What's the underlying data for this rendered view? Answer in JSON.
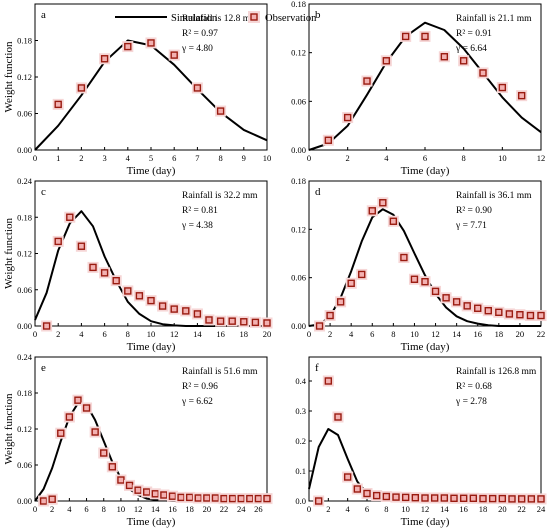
{
  "legend": {
    "simulation_label": "Simulation",
    "observation_label": "Observation"
  },
  "colors": {
    "simulation": "#000000",
    "marker_edge": "#9a1b10",
    "marker_fill": "#f3b1b1",
    "marker_halo": "#f6d6d6"
  },
  "chart_data": [
    {
      "type": "line",
      "panel_label": "a",
      "info_lines": [
        "Rainfall is 12.8 mm",
        "R² = 0.97",
        "γ = 4.80"
      ],
      "xlabel": "Time (day)",
      "ylabel": "Weight function",
      "xlim": [
        0,
        10
      ],
      "ylim": [
        0,
        0.24
      ],
      "xticks": [
        0,
        1,
        2,
        3,
        4,
        5,
        6,
        7,
        8,
        9,
        10
      ],
      "yticks": [
        0.0,
        0.06,
        0.12,
        0.18
      ],
      "ytick_labels": [
        "0.00",
        "0.06",
        "0.12",
        "0.18"
      ],
      "series": [
        {
          "name": "Simulation",
          "kind": "line",
          "x": [
            0,
            1,
            2,
            3,
            4,
            5,
            6,
            7,
            8,
            9,
            10
          ],
          "y": [
            0.0,
            0.04,
            0.09,
            0.145,
            0.18,
            0.172,
            0.14,
            0.1,
            0.062,
            0.033,
            0.016
          ]
        },
        {
          "name": "Observation",
          "kind": "marker",
          "x": [
            1,
            2,
            3,
            4,
            5,
            6,
            7,
            8
          ],
          "y": [
            0.075,
            0.102,
            0.15,
            0.17,
            0.176,
            0.156,
            0.102,
            0.064
          ]
        }
      ]
    },
    {
      "type": "line",
      "panel_label": "b",
      "info_lines": [
        "Rainfall is 21.1 mm",
        "R² = 0.91",
        "γ = 6.64"
      ],
      "xlabel": "Time (day)",
      "ylabel": "",
      "xlim": [
        0,
        12
      ],
      "ylim": [
        0,
        0.18
      ],
      "xticks": [
        0,
        2,
        4,
        6,
        8,
        10,
        12
      ],
      "yticks": [
        0.0,
        0.06,
        0.12,
        0.18
      ],
      "ytick_labels": [
        "0.00",
        "0.06",
        "0.12",
        "0.18"
      ],
      "series": [
        {
          "name": "Simulation",
          "kind": "line",
          "x": [
            0,
            1,
            2,
            3,
            4,
            5,
            6,
            7,
            8,
            9,
            10,
            11,
            12
          ],
          "y": [
            0.0,
            0.008,
            0.03,
            0.068,
            0.108,
            0.14,
            0.157,
            0.148,
            0.125,
            0.095,
            0.065,
            0.04,
            0.022
          ]
        },
        {
          "name": "Observation",
          "kind": "marker",
          "x": [
            1,
            2,
            3,
            4,
            5,
            6,
            7,
            8,
            9,
            10,
            11
          ],
          "y": [
            0.012,
            0.04,
            0.085,
            0.11,
            0.14,
            0.14,
            0.115,
            0.11,
            0.095,
            0.077,
            0.067
          ]
        }
      ]
    },
    {
      "type": "line",
      "panel_label": "c",
      "info_lines": [
        "Rainfall is 32.2 mm",
        "R² = 0.81",
        "γ = 4.38"
      ],
      "xlabel": "Time (day)",
      "ylabel": "Weight function",
      "xlim": [
        0,
        20
      ],
      "ylim": [
        0,
        0.24
      ],
      "xticks": [
        0,
        2,
        4,
        6,
        8,
        10,
        12,
        14,
        16,
        18,
        20
      ],
      "yticks": [
        0.0,
        0.06,
        0.12,
        0.18,
        0.24
      ],
      "ytick_labels": [
        "0.00",
        "0.06",
        "0.12",
        "0.18",
        "0.24"
      ],
      "series": [
        {
          "name": "Simulation",
          "kind": "line",
          "x": [
            0,
            1,
            2,
            3,
            4,
            5,
            6,
            7,
            8,
            9,
            10,
            11,
            12,
            13,
            14,
            15,
            16,
            17,
            18,
            19,
            20
          ],
          "y": [
            0.01,
            0.055,
            0.125,
            0.17,
            0.19,
            0.165,
            0.115,
            0.075,
            0.04,
            0.02,
            0.008,
            0.003,
            0.001,
            0,
            0,
            0,
            0,
            0,
            0,
            0,
            0
          ]
        },
        {
          "name": "Observation",
          "kind": "marker",
          "x": [
            1,
            2,
            3,
            4,
            5,
            6,
            7,
            8,
            9,
            10,
            11,
            12,
            13,
            14,
            15,
            16,
            17,
            18,
            19,
            20
          ],
          "y": [
            0.0,
            0.14,
            0.18,
            0.132,
            0.097,
            0.088,
            0.075,
            0.058,
            0.05,
            0.042,
            0.033,
            0.028,
            0.025,
            0.02,
            0.01,
            0.008,
            0.008,
            0.007,
            0.006,
            0.005
          ]
        }
      ]
    },
    {
      "type": "line",
      "panel_label": "d",
      "info_lines": [
        "Rainfall is 36.1 mm",
        "R² = 0.90",
        "γ = 7.71"
      ],
      "xlabel": "Time (day)",
      "ylabel": "",
      "xlim": [
        0,
        22
      ],
      "ylim": [
        0,
        0.18
      ],
      "xticks": [
        0,
        2,
        4,
        6,
        8,
        10,
        12,
        14,
        16,
        18,
        20,
        22
      ],
      "yticks": [
        0.0,
        0.06,
        0.12,
        0.18
      ],
      "ytick_labels": [
        "0.00",
        "0.06",
        "0.12",
        "0.18"
      ],
      "series": [
        {
          "name": "Simulation",
          "kind": "line",
          "x": [
            0,
            1,
            2,
            3,
            4,
            5,
            6,
            7,
            8,
            9,
            10,
            11,
            12,
            13,
            14,
            15,
            16,
            17,
            18,
            19,
            20,
            21,
            22
          ],
          "y": [
            0,
            0.002,
            0.012,
            0.035,
            0.068,
            0.105,
            0.135,
            0.145,
            0.138,
            0.118,
            0.09,
            0.063,
            0.04,
            0.023,
            0.012,
            0.006,
            0.003,
            0.001,
            0,
            0,
            0,
            0,
            0
          ]
        },
        {
          "name": "Observation",
          "kind": "marker",
          "x": [
            1,
            2,
            3,
            4,
            5,
            6,
            7,
            8,
            9,
            10,
            11,
            12,
            13,
            14,
            15,
            16,
            17,
            18,
            19,
            20,
            21,
            22
          ],
          "y": [
            0.0,
            0.013,
            0.03,
            0.053,
            0.064,
            0.143,
            0.153,
            0.13,
            0.085,
            0.058,
            0.055,
            0.043,
            0.035,
            0.03,
            0.025,
            0.022,
            0.019,
            0.017,
            0.015,
            0.014,
            0.013,
            0.013
          ]
        }
      ]
    },
    {
      "type": "line",
      "panel_label": "e",
      "info_lines": [
        "Rainfall is 51.6 mm",
        "R² = 0.96",
        "γ = 6.62"
      ],
      "xlabel": "Time (day)",
      "ylabel": "Weight function",
      "xlim": [
        0,
        27
      ],
      "ylim": [
        0,
        0.24
      ],
      "xticks": [
        0,
        2,
        4,
        6,
        8,
        10,
        12,
        14,
        16,
        18,
        20,
        22,
        24,
        26
      ],
      "yticks": [
        0.0,
        0.06,
        0.12,
        0.18,
        0.24
      ],
      "ytick_labels": [
        "0.00",
        "0.06",
        "0.12",
        "0.18",
        "0.24"
      ],
      "series": [
        {
          "name": "Simulation",
          "kind": "line",
          "x": [
            0,
            1,
            2,
            3,
            4,
            5,
            6,
            7,
            8,
            9,
            10,
            11,
            12,
            13,
            14,
            15,
            16,
            17,
            18,
            19,
            20,
            21,
            22,
            23,
            24,
            25,
            26,
            27
          ],
          "y": [
            0.0,
            0.02,
            0.055,
            0.1,
            0.14,
            0.163,
            0.16,
            0.135,
            0.1,
            0.065,
            0.038,
            0.02,
            0.01,
            0.004,
            0.002,
            0.001,
            0,
            0,
            0,
            0,
            0,
            0,
            0,
            0,
            0,
            0,
            0,
            0
          ]
        },
        {
          "name": "Observation",
          "kind": "marker",
          "x": [
            1,
            2,
            3,
            4,
            5,
            6,
            7,
            8,
            9,
            10,
            11,
            12,
            13,
            14,
            15,
            16,
            17,
            18,
            19,
            20,
            21,
            22,
            23,
            24,
            25,
            26,
            27
          ],
          "y": [
            0.0,
            0.003,
            0.113,
            0.14,
            0.168,
            0.155,
            0.115,
            0.08,
            0.057,
            0.035,
            0.026,
            0.018,
            0.015,
            0.012,
            0.01,
            0.008,
            0.006,
            0.006,
            0.005,
            0.005,
            0.005,
            0.004,
            0.004,
            0.004,
            0.004,
            0.004,
            0.004
          ]
        }
      ]
    },
    {
      "type": "line",
      "panel_label": "f",
      "info_lines": [
        "Rainfall is 126.8 mm",
        "R² = 0.68",
        "γ = 2.78"
      ],
      "xlabel": "Time (day)",
      "ylabel": "",
      "xlim": [
        0,
        24
      ],
      "ylim": [
        0,
        0.48
      ],
      "xticks": [
        0,
        2,
        4,
        6,
        8,
        10,
        12,
        14,
        16,
        18,
        20,
        22,
        24
      ],
      "yticks": [
        0.0,
        0.1,
        0.2,
        0.3,
        0.4
      ],
      "ytick_labels": [
        "0.0",
        "0.1",
        "0.2",
        "0.3",
        "0.4"
      ],
      "series": [
        {
          "name": "Simulation",
          "kind": "line",
          "x": [
            0,
            1,
            2,
            3,
            4,
            5,
            6,
            7,
            8,
            9,
            10,
            11,
            12,
            13,
            14,
            15,
            16,
            17,
            18,
            19,
            20,
            21,
            22,
            23,
            24
          ],
          "y": [
            0.04,
            0.18,
            0.24,
            0.22,
            0.14,
            0.065,
            0.025,
            0.008,
            0.002,
            0,
            0,
            0,
            0,
            0,
            0,
            0,
            0,
            0,
            0,
            0,
            0,
            0,
            0,
            0,
            0
          ]
        },
        {
          "name": "Observation",
          "kind": "marker",
          "x": [
            1,
            2,
            3,
            4,
            5,
            6,
            7,
            8,
            9,
            10,
            11,
            12,
            13,
            14,
            15,
            16,
            17,
            18,
            19,
            20,
            21,
            22,
            23,
            24
          ],
          "y": [
            0.0,
            0.4,
            0.28,
            0.08,
            0.04,
            0.025,
            0.018,
            0.015,
            0.013,
            0.012,
            0.011,
            0.01,
            0.01,
            0.01,
            0.009,
            0.009,
            0.009,
            0.008,
            0.008,
            0.008,
            0.007,
            0.007,
            0.007,
            0.007
          ]
        }
      ]
    }
  ]
}
